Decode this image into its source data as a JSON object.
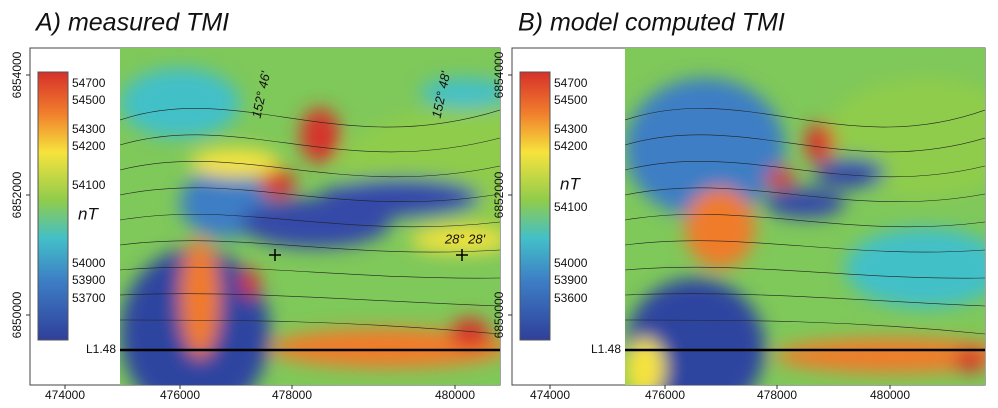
{
  "panels": [
    {
      "title": "A) measured TMI",
      "colorbar": {
        "labels": [
          54700,
          54500,
          54300,
          54200,
          54100,
          54000,
          53900,
          53700
        ],
        "unit": "nT"
      },
      "y_ticks": [
        6854000,
        6852000,
        6850000
      ],
      "x_ticks": [
        474000,
        476000,
        478000,
        480000
      ],
      "profile": "L1.48",
      "annotations": [
        "152° 46'",
        "152° 48'",
        "28° 28'"
      ]
    },
    {
      "title": "B) model computed TMI",
      "colorbar": {
        "labels": [
          54700,
          54500,
          54300,
          54200,
          54100,
          54000,
          53900,
          53600
        ],
        "unit": "nT"
      },
      "y_ticks": [
        6854000,
        6852000,
        6850000
      ],
      "x_ticks": [
        474000,
        476000,
        478000,
        480000
      ],
      "profile": "L1.48",
      "annotations": []
    }
  ]
}
